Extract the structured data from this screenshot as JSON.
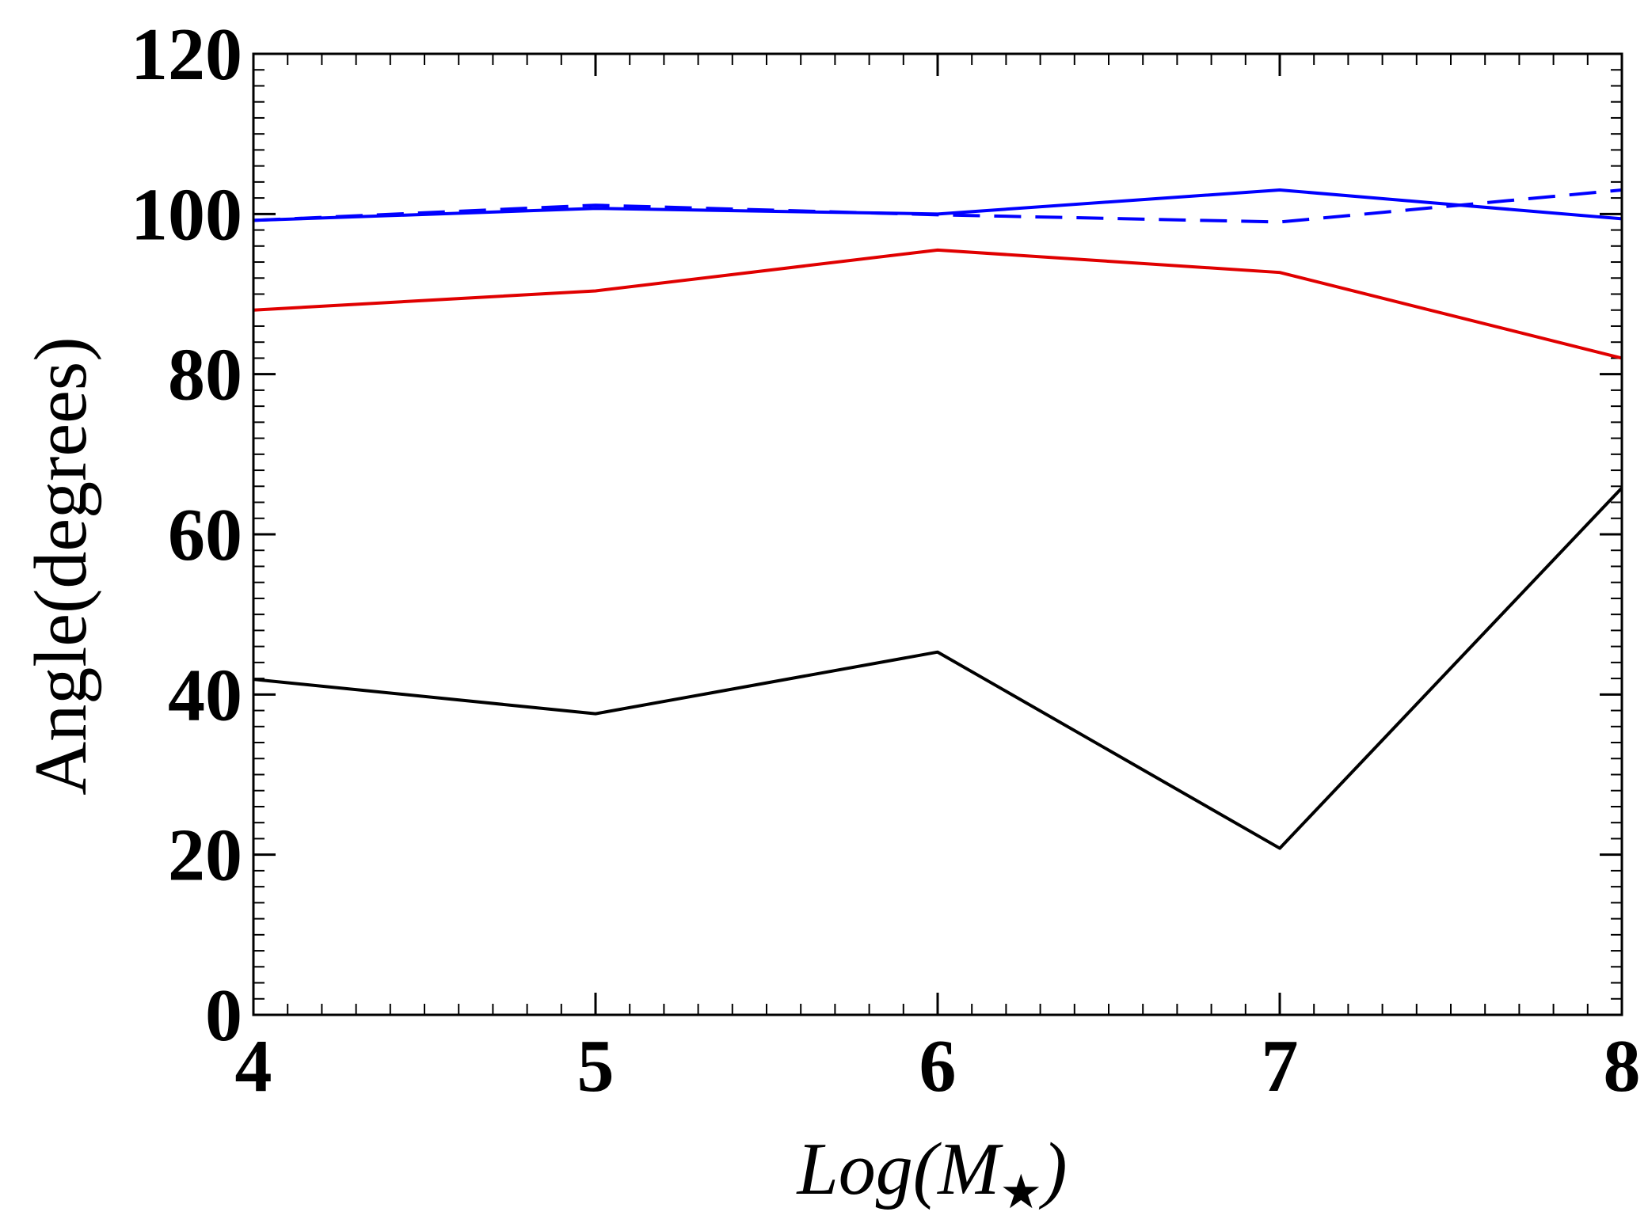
{
  "chart_data": {
    "type": "line",
    "title": "",
    "xlabel": "Log(M★)",
    "xlabel_parts": {
      "pre": "Log(",
      "var": "M",
      "sub": "★",
      "post": ")"
    },
    "ylabel": "Angle(degrees)",
    "xlim": [
      4,
      8
    ],
    "ylim": [
      0,
      120
    ],
    "x_ticks": [
      4,
      5,
      6,
      7,
      8
    ],
    "x_tick_labels": [
      "4",
      "5",
      "6",
      "7",
      "8"
    ],
    "y_ticks": [
      0,
      20,
      40,
      60,
      80,
      100,
      120
    ],
    "y_tick_labels": [
      "0",
      "20",
      "40",
      "60",
      "80",
      "100",
      "120"
    ],
    "x": [
      4,
      5,
      6,
      7,
      8
    ],
    "series": [
      {
        "name": "blue-solid",
        "color": "#0000ff",
        "dash": "solid",
        "values": [
          99.2,
          100.7,
          100.0,
          103.0,
          99.4
        ]
      },
      {
        "name": "blue-dashed",
        "color": "#0000ff",
        "dash": "dashed",
        "values": [
          99.2,
          101.1,
          99.9,
          99.0,
          103.0
        ]
      },
      {
        "name": "red",
        "color": "#e00000",
        "dash": "solid",
        "values": [
          88.0,
          90.4,
          95.5,
          92.7,
          82.0
        ]
      },
      {
        "name": "black",
        "color": "#000000",
        "dash": "solid",
        "values": [
          41.9,
          37.6,
          45.3,
          20.8,
          65.8
        ]
      }
    ],
    "grid": false,
    "legend": "none"
  }
}
